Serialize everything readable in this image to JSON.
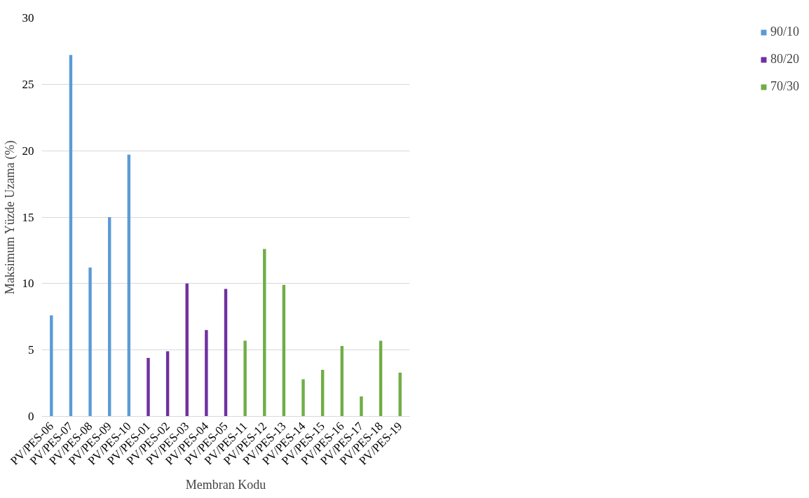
{
  "chart_data": {
    "type": "bar",
    "xlabel": "Membran Kodu",
    "ylabel": "Maksimum Yüzde Uzama (%)",
    "categories": [
      "PV/PES-06",
      "PV/PES-07",
      "PV/PES-08",
      "PV/PES-09",
      "PV/PES-10",
      "PV/PES-01",
      "PV/PES-02",
      "PV/PES-03",
      "PV/PES-04",
      "PV/PES-05",
      "PV/PES-11",
      "PV/PES-12",
      "PV/PES-13",
      "PV/PES-14",
      "PV/PES-15",
      "PV/PES-16",
      "PV/PES-17",
      "PV/PES-18",
      "PV/PES-19"
    ],
    "series": [
      {
        "name": "90/10",
        "color": "#5b9bd5",
        "values": [
          7.6,
          27.2,
          11.2,
          15.0,
          19.7,
          null,
          null,
          null,
          null,
          null,
          null,
          null,
          null,
          null,
          null,
          null,
          null,
          null,
          null
        ]
      },
      {
        "name": "80/20",
        "color": "#7030a0",
        "values": [
          null,
          null,
          null,
          null,
          null,
          4.4,
          4.9,
          10.0,
          6.5,
          9.6,
          null,
          null,
          null,
          null,
          null,
          null,
          null,
          null,
          null
        ]
      },
      {
        "name": "70/30",
        "color": "#70ad47",
        "values": [
          null,
          null,
          null,
          null,
          null,
          null,
          null,
          null,
          null,
          null,
          5.7,
          12.6,
          9.9,
          2.8,
          3.5,
          5.3,
          1.5,
          5.7,
          3.3
        ]
      }
    ],
    "ylim": [
      0,
      30
    ],
    "yticks": [
      0,
      5,
      10,
      15,
      20,
      25,
      30
    ],
    "grid": "y",
    "legend": "right"
  }
}
